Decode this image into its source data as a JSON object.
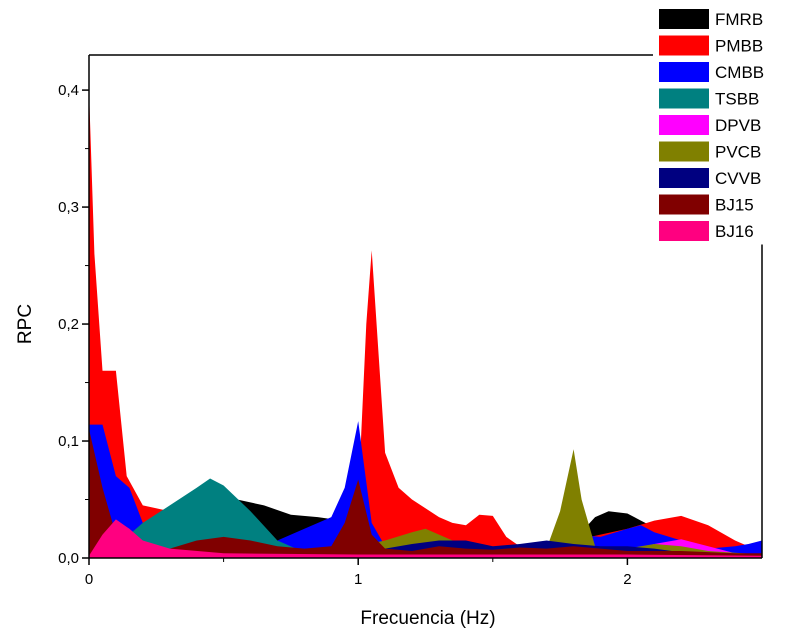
{
  "chart_data": {
    "type": "area",
    "title": "",
    "xlabel": "Frecuencia (Hz)",
    "ylabel": "RPC",
    "xlim": [
      0,
      2.5
    ],
    "ylim": [
      0,
      0.43
    ],
    "x_ticks": [
      {
        "value": 0,
        "label": "0"
      },
      {
        "value": 1,
        "label": "1"
      },
      {
        "value": 2,
        "label": "2"
      }
    ],
    "y_ticks": [
      {
        "value": 0,
        "label": "0,0"
      },
      {
        "value": 0.1,
        "label": "0,1"
      },
      {
        "value": 0.2,
        "label": "0,2"
      },
      {
        "value": 0.3,
        "label": "0,3"
      },
      {
        "value": 0.4,
        "label": "0,4"
      }
    ],
    "grid": false,
    "legend_position": "top-right",
    "series": [
      {
        "name": "FMRB",
        "color": "#000000",
        "points": [
          [
            0,
            0.005
          ],
          [
            0.1,
            0.008
          ],
          [
            0.2,
            0.015
          ],
          [
            0.3,
            0.03
          ],
          [
            0.45,
            0.055
          ],
          [
            0.55,
            0.05
          ],
          [
            0.65,
            0.045
          ],
          [
            0.75,
            0.037
          ],
          [
            0.85,
            0.035
          ],
          [
            1.0,
            0.03
          ],
          [
            1.1,
            0.022
          ],
          [
            1.2,
            0.02
          ],
          [
            1.3,
            0.018
          ],
          [
            1.4,
            0.015
          ],
          [
            1.5,
            0.013
          ],
          [
            1.6,
            0.011
          ],
          [
            1.7,
            0.012
          ],
          [
            1.8,
            0.015
          ],
          [
            1.88,
            0.035
          ],
          [
            1.93,
            0.04
          ],
          [
            2.0,
            0.038
          ],
          [
            2.05,
            0.032
          ],
          [
            2.15,
            0.02
          ],
          [
            2.25,
            0.015
          ],
          [
            2.35,
            0.01
          ],
          [
            2.5,
            0.005
          ]
        ]
      },
      {
        "name": "PMBB",
        "color": "#ff0000",
        "points": [
          [
            0,
            0.4
          ],
          [
            0.02,
            0.26
          ],
          [
            0.05,
            0.16
          ],
          [
            0.1,
            0.16
          ],
          [
            0.14,
            0.07
          ],
          [
            0.2,
            0.045
          ],
          [
            0.3,
            0.04
          ],
          [
            0.5,
            0.02
          ],
          [
            0.7,
            0.01
          ],
          [
            0.9,
            0.012
          ],
          [
            0.95,
            0.03
          ],
          [
            1.0,
            0.05
          ],
          [
            1.03,
            0.2
          ],
          [
            1.05,
            0.263
          ],
          [
            1.1,
            0.09
          ],
          [
            1.15,
            0.06
          ],
          [
            1.2,
            0.05
          ],
          [
            1.3,
            0.035
          ],
          [
            1.35,
            0.03
          ],
          [
            1.4,
            0.028
          ],
          [
            1.45,
            0.037
          ],
          [
            1.5,
            0.036
          ],
          [
            1.55,
            0.018
          ],
          [
            1.6,
            0.01
          ],
          [
            1.8,
            0.015
          ],
          [
            2.0,
            0.025
          ],
          [
            2.1,
            0.032
          ],
          [
            2.2,
            0.036
          ],
          [
            2.3,
            0.028
          ],
          [
            2.4,
            0.015
          ],
          [
            2.5,
            0.005
          ]
        ]
      },
      {
        "name": "CMBB",
        "color": "#0000ff",
        "points": [
          [
            0,
            0.114
          ],
          [
            0.05,
            0.114
          ],
          [
            0.1,
            0.07
          ],
          [
            0.15,
            0.06
          ],
          [
            0.2,
            0.03
          ],
          [
            0.3,
            0.022
          ],
          [
            0.5,
            0.018
          ],
          [
            0.7,
            0.015
          ],
          [
            0.8,
            0.025
          ],
          [
            0.9,
            0.035
          ],
          [
            0.95,
            0.06
          ],
          [
            1.0,
            0.117
          ],
          [
            1.05,
            0.03
          ],
          [
            1.1,
            0.01
          ],
          [
            1.3,
            0.01
          ],
          [
            1.5,
            0.008
          ],
          [
            1.7,
            0.012
          ],
          [
            1.8,
            0.02
          ],
          [
            1.9,
            0.018
          ],
          [
            2.0,
            0.025
          ],
          [
            2.05,
            0.028
          ],
          [
            2.1,
            0.022
          ],
          [
            2.2,
            0.015
          ],
          [
            2.3,
            0.008
          ],
          [
            2.4,
            0.01
          ],
          [
            2.45,
            0.012
          ],
          [
            2.5,
            0.015
          ]
        ]
      },
      {
        "name": "TSBB",
        "color": "#008080",
        "points": [
          [
            0,
            0.005
          ],
          [
            0.1,
            0.01
          ],
          [
            0.2,
            0.03
          ],
          [
            0.3,
            0.045
          ],
          [
            0.4,
            0.06
          ],
          [
            0.45,
            0.068
          ],
          [
            0.5,
            0.062
          ],
          [
            0.6,
            0.04
          ],
          [
            0.7,
            0.015
          ],
          [
            0.8,
            0.005
          ],
          [
            1.0,
            0.003
          ],
          [
            2.5,
            0.002
          ]
        ]
      },
      {
        "name": "DPVB",
        "color": "#ff00ff",
        "points": [
          [
            0,
            0.002
          ],
          [
            0.5,
            0.002
          ],
          [
            0.9,
            0.004
          ],
          [
            1.0,
            0.006
          ],
          [
            1.5,
            0.004
          ],
          [
            2.0,
            0.006
          ],
          [
            2.1,
            0.012
          ],
          [
            2.2,
            0.016
          ],
          [
            2.3,
            0.01
          ],
          [
            2.4,
            0.004
          ],
          [
            2.5,
            0.002
          ]
        ]
      },
      {
        "name": "PVCB",
        "color": "#808000",
        "points": [
          [
            0,
            0.002
          ],
          [
            0.9,
            0.003
          ],
          [
            1.0,
            0.01
          ],
          [
            1.1,
            0.015
          ],
          [
            1.2,
            0.022
          ],
          [
            1.25,
            0.025
          ],
          [
            1.3,
            0.02
          ],
          [
            1.4,
            0.01
          ],
          [
            1.6,
            0.005
          ],
          [
            1.7,
            0.008
          ],
          [
            1.75,
            0.04
          ],
          [
            1.8,
            0.093
          ],
          [
            1.83,
            0.05
          ],
          [
            1.88,
            0.01
          ],
          [
            2.0,
            0.008
          ],
          [
            2.1,
            0.012
          ],
          [
            2.2,
            0.01
          ],
          [
            2.3,
            0.006
          ],
          [
            2.5,
            0.003
          ]
        ]
      },
      {
        "name": "CVVB",
        "color": "#000080",
        "points": [
          [
            0,
            0.002
          ],
          [
            0.5,
            0.003
          ],
          [
            1.0,
            0.005
          ],
          [
            1.1,
            0.008
          ],
          [
            1.2,
            0.012
          ],
          [
            1.3,
            0.015
          ],
          [
            1.4,
            0.015
          ],
          [
            1.5,
            0.01
          ],
          [
            1.6,
            0.012
          ],
          [
            1.7,
            0.015
          ],
          [
            1.8,
            0.012
          ],
          [
            1.9,
            0.01
          ],
          [
            2.0,
            0.01
          ],
          [
            2.1,
            0.008
          ],
          [
            2.2,
            0.005
          ],
          [
            2.5,
            0.003
          ]
        ]
      },
      {
        "name": "BJ15",
        "color": "#800000",
        "points": [
          [
            0,
            0.11
          ],
          [
            0.05,
            0.06
          ],
          [
            0.1,
            0.02
          ],
          [
            0.2,
            0.008
          ],
          [
            0.3,
            0.008
          ],
          [
            0.4,
            0.015
          ],
          [
            0.5,
            0.018
          ],
          [
            0.6,
            0.015
          ],
          [
            0.7,
            0.01
          ],
          [
            0.8,
            0.008
          ],
          [
            0.9,
            0.01
          ],
          [
            0.95,
            0.03
          ],
          [
            1.0,
            0.067
          ],
          [
            1.05,
            0.02
          ],
          [
            1.1,
            0.008
          ],
          [
            1.2,
            0.006
          ],
          [
            1.3,
            0.01
          ],
          [
            1.4,
            0.008
          ],
          [
            1.5,
            0.007
          ],
          [
            1.6,
            0.009
          ],
          [
            1.7,
            0.008
          ],
          [
            1.8,
            0.01
          ],
          [
            2.0,
            0.006
          ],
          [
            2.2,
            0.006
          ],
          [
            2.4,
            0.004
          ],
          [
            2.5,
            0.004
          ]
        ]
      },
      {
        "name": "BJ16",
        "color": "#ff0080",
        "points": [
          [
            0,
            0.002
          ],
          [
            0.05,
            0.02
          ],
          [
            0.1,
            0.033
          ],
          [
            0.15,
            0.025
          ],
          [
            0.2,
            0.015
          ],
          [
            0.3,
            0.008
          ],
          [
            0.5,
            0.004
          ],
          [
            1.0,
            0.003
          ],
          [
            1.5,
            0.003
          ],
          [
            2.0,
            0.003
          ],
          [
            2.5,
            0.002
          ]
        ]
      }
    ]
  }
}
